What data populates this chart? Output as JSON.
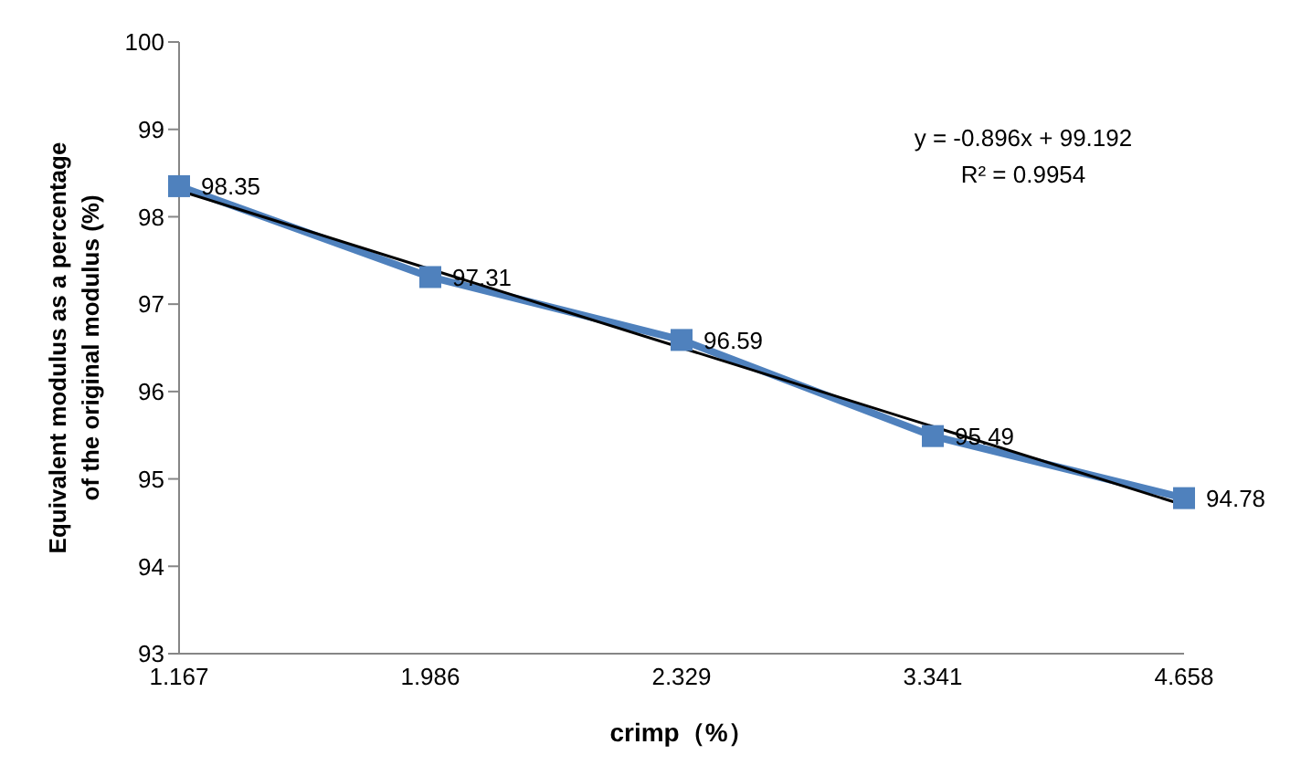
{
  "chart_data": {
    "type": "line",
    "xlabel": "crimp（%）",
    "ylabel": "Equivalent modulus as a percentage of the original modulus  (%)",
    "categories": [
      "1.167",
      "1.986",
      "2.329",
      "3.341",
      "4.658"
    ],
    "series": [
      {
        "color": "#4f81bd",
        "values": [
          98.35,
          97.31,
          96.59,
          95.49,
          94.78
        ],
        "value_labels": [
          "98.35",
          "97.31",
          "96.59",
          "95.49",
          "94.78"
        ],
        "marker": "square"
      },
      {
        "type": "line",
        "color": "#000000",
        "x": [
          "1.167",
          "4.658"
        ],
        "values": [
          98.3,
          94.7
        ],
        "marker": "none"
      }
    ],
    "ylim": [
      93,
      100
    ],
    "yticks": [
      93,
      94,
      95,
      96,
      97,
      98,
      99,
      100
    ],
    "annotations": [
      "y = -0.896x + 99.192",
      "R² = 0.9954"
    ]
  }
}
